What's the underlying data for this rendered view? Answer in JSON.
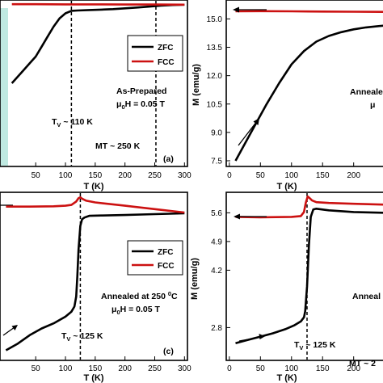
{
  "chart_data": [
    {
      "panel": "a",
      "type": "line",
      "xlabel": "T (K)",
      "ylabel": "",
      "xlim": [
        -10,
        305
      ],
      "ylim": [
        0,
        1
      ],
      "xticks": [
        50,
        100,
        150,
        200,
        250,
        300
      ],
      "xtick_labels": [
        "50",
        "100",
        "150",
        "200",
        "250",
        "300"
      ],
      "yticks": [],
      "series": [
        {
          "name": "ZFC",
          "color": "#000000",
          "x": [
            10,
            20,
            30,
            40,
            50,
            60,
            70,
            80,
            90,
            100,
            110,
            120,
            140,
            160,
            180,
            200,
            220,
            240,
            260,
            280,
            300
          ],
          "y": [
            0.5,
            0.54,
            0.58,
            0.62,
            0.66,
            0.72,
            0.78,
            0.84,
            0.89,
            0.92,
            0.935,
            0.937,
            0.94,
            0.942,
            0.945,
            0.95,
            0.955,
            0.96,
            0.966,
            0.97,
            0.972
          ]
        },
        {
          "name": "FCC",
          "color": "#cc1111",
          "x": [
            10,
            50,
            100,
            150,
            200,
            250,
            300
          ],
          "y": [
            0.975,
            0.975,
            0.974,
            0.974,
            0.973,
            0.973,
            0.972
          ]
        }
      ],
      "shaded_region": {
        "x": [
          0,
          10
        ],
        "color": "#bfe9e1"
      },
      "vlines": [
        110,
        252
      ],
      "legend_position": "top-right",
      "annotations": {
        "sample": "As-Prepared",
        "field": "μ0H = 0.05 T",
        "tv": "TV ~ 110 K",
        "mt": "MT ~ 250 K",
        "label": "(a)"
      }
    },
    {
      "panel": "b",
      "type": "line",
      "xlabel": "T (K)",
      "ylabel": "M (emu/g)",
      "xlim": [
        -5,
        255
      ],
      "ylim": [
        7.2,
        16.0
      ],
      "xticks": [
        0,
        50,
        100,
        150,
        200
      ],
      "xtick_labels": [
        "0",
        "50",
        "100",
        "150",
        "200"
      ],
      "yticks": [
        7.5,
        9.0,
        10.5,
        12.0,
        13.5,
        15.0
      ],
      "ytick_labels": [
        "7.5",
        "9.0",
        "10.5",
        "12.0",
        "13.5",
        "15.0"
      ],
      "series": [
        {
          "name": "",
          "color": "#000000",
          "x": [
            10,
            20,
            40,
            60,
            80,
            100,
            120,
            140,
            160,
            180,
            200,
            220,
            240,
            250
          ],
          "y": [
            7.5,
            8.1,
            9.3,
            10.5,
            11.6,
            12.6,
            13.3,
            13.8,
            14.1,
            14.3,
            14.45,
            14.55,
            14.62,
            14.65
          ]
        },
        {
          "name": "",
          "color": "#cc1111",
          "x": [
            10,
            50,
            100,
            150,
            200,
            250
          ],
          "y": [
            15.4,
            15.41,
            15.4,
            15.39,
            15.38,
            15.37
          ]
        }
      ],
      "annotations": {
        "sample": "Annealed",
        "field": "μ"
      }
    },
    {
      "panel": "c",
      "type": "line",
      "xlabel": "T (K)",
      "ylabel": "",
      "xlim": [
        -10,
        305
      ],
      "ylim": [
        0,
        1
      ],
      "xticks": [
        50,
        100,
        150,
        200,
        250,
        300
      ],
      "xtick_labels": [
        "50",
        "100",
        "150",
        "200",
        "250",
        "300"
      ],
      "yticks": [],
      "series": [
        {
          "name": "ZFC",
          "color": "#000000",
          "x": [
            0,
            20,
            40,
            60,
            80,
            100,
            110,
            115,
            118,
            120,
            122,
            125,
            128,
            132,
            140,
            160,
            200,
            250,
            300
          ],
          "y": [
            0.06,
            0.1,
            0.15,
            0.19,
            0.22,
            0.26,
            0.29,
            0.32,
            0.38,
            0.5,
            0.66,
            0.8,
            0.84,
            0.85,
            0.86,
            0.862,
            0.865,
            0.87,
            0.875
          ]
        },
        {
          "name": "FCC",
          "color": "#cc1111",
          "x": [
            0,
            40,
            80,
            100,
            110,
            118,
            122,
            125,
            128,
            135,
            150,
            200,
            250,
            300
          ],
          "y": [
            0.915,
            0.915,
            0.917,
            0.92,
            0.925,
            0.945,
            0.965,
            0.97,
            0.962,
            0.95,
            0.94,
            0.92,
            0.9,
            0.88
          ]
        }
      ],
      "vlines": [
        125
      ],
      "legend_position": "right",
      "annotations": {
        "sample": "Annealed at 250 0C",
        "field": "μ0H = 0.05 T",
        "tv": "TV ~ 125 K",
        "label": "(c)"
      }
    },
    {
      "panel": "d",
      "type": "line",
      "xlabel": "T (K)",
      "ylabel": "M (emu/g)",
      "xlim": [
        -5,
        255
      ],
      "ylim": [
        2.0,
        6.1
      ],
      "xticks": [
        0,
        50,
        100,
        150,
        200
      ],
      "xtick_labels": [
        "0",
        "50",
        "100",
        "150",
        "200"
      ],
      "yticks": [
        2.8,
        4.2,
        4.9,
        5.6
      ],
      "ytick_labels": [
        "2.8",
        "4.2",
        "4.9",
        "5.6"
      ],
      "series": [
        {
          "name": "",
          "color": "#000000",
          "x": [
            10,
            30,
            50,
            70,
            90,
            105,
            115,
            120,
            122,
            125,
            128,
            131,
            135,
            140,
            160,
            200,
            250
          ],
          "y": [
            2.42,
            2.5,
            2.58,
            2.66,
            2.76,
            2.86,
            2.95,
            3.05,
            3.2,
            3.8,
            4.8,
            5.5,
            5.68,
            5.7,
            5.66,
            5.62,
            5.6
          ]
        },
        {
          "name": "",
          "color": "#cc1111",
          "x": [
            10,
            50,
            100,
            115,
            120,
            123,
            126,
            129,
            133,
            140,
            160,
            200,
            250
          ],
          "y": [
            5.5,
            5.49,
            5.5,
            5.52,
            5.62,
            5.85,
            6.0,
            5.96,
            5.9,
            5.86,
            5.84,
            5.82,
            5.8
          ]
        }
      ],
      "vlines": [
        125
      ],
      "annotations": {
        "sample": "Anneal",
        "tv": "TV ~ 125 K",
        "mt": "MT ~ 2"
      }
    }
  ]
}
